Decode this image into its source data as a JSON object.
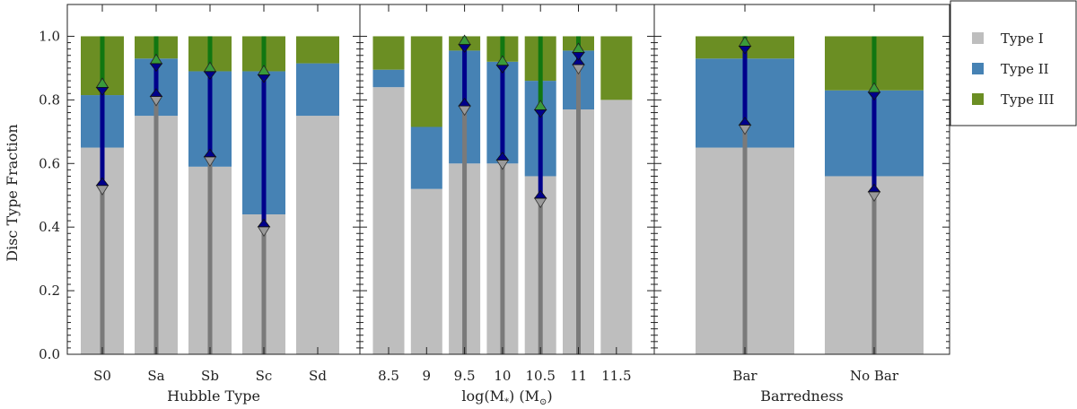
{
  "figure": {
    "ylabel": "Disc Type Fraction",
    "y_ticks": [
      "0.0",
      "0.2",
      "0.4",
      "0.6",
      "0.8",
      "1.0"
    ],
    "legend": [
      {
        "label": "Type I",
        "color": "#bebebe"
      },
      {
        "label": "Type II",
        "color": "#4682b4"
      },
      {
        "label": "Type III",
        "color": "#6b8e23"
      }
    ],
    "colors": {
      "type1": "#bebebe",
      "type2": "#4682b4",
      "type3": "#6b8e23",
      "line_type1": "#7a7a7a",
      "line_type2": "#00008b",
      "line_type3": "#117711"
    }
  },
  "chart_data": [
    {
      "type": "bar",
      "xlabel": "Hubble Type",
      "ylim": [
        0,
        1.1
      ],
      "categories": [
        "S0",
        "Sa",
        "Sb",
        "Sc",
        "Sd"
      ],
      "series": [
        {
          "name": "Type I",
          "values": [
            0.65,
            0.75,
            0.59,
            0.44,
            0.75
          ]
        },
        {
          "name": "Type II",
          "values": [
            0.165,
            0.18,
            0.3,
            0.45,
            0.165
          ]
        },
        {
          "name": "Type III",
          "values": [
            0.185,
            0.07,
            0.11,
            0.11,
            0.085
          ]
        }
      ],
      "markers": [
        {
          "category": "S0",
          "down": 0.52,
          "up": 0.85
        },
        {
          "category": "Sa",
          "down": 0.8,
          "up": 0.925
        },
        {
          "category": "Sb",
          "down": 0.61,
          "up": 0.9
        },
        {
          "category": "Sc",
          "down": 0.39,
          "up": 0.89
        }
      ]
    },
    {
      "type": "bar",
      "xlabel": "log(M*) (M⊙)",
      "ylim": [
        0,
        1.1
      ],
      "categories": [
        "8.5",
        "9",
        "9.5",
        "10",
        "10.5",
        "11",
        "11.5"
      ],
      "series": [
        {
          "name": "Type I",
          "values": [
            0.84,
            0.52,
            0.6,
            0.6,
            0.56,
            0.77,
            0.8
          ]
        },
        {
          "name": "Type II",
          "values": [
            0.055,
            0.195,
            0.355,
            0.32,
            0.3,
            0.185,
            0.0
          ]
        },
        {
          "name": "Type III",
          "values": [
            0.105,
            0.285,
            0.045,
            0.08,
            0.14,
            0.045,
            0.2
          ]
        }
      ],
      "markers": [
        {
          "category": "9.5",
          "down": 0.77,
          "up": 0.985
        },
        {
          "category": "10",
          "down": 0.6,
          "up": 0.92
        },
        {
          "category": "10.5",
          "down": 0.48,
          "up": 0.78
        },
        {
          "category": "11",
          "down": 0.9,
          "up": 0.96
        }
      ]
    },
    {
      "type": "bar",
      "xlabel": "Barredness",
      "ylim": [
        0,
        1.1
      ],
      "categories": [
        "Bar",
        "No Bar"
      ],
      "series": [
        {
          "name": "Type I",
          "values": [
            0.65,
            0.56
          ]
        },
        {
          "name": "Type II",
          "values": [
            0.28,
            0.27
          ]
        },
        {
          "name": "Type III",
          "values": [
            0.07,
            0.17
          ]
        }
      ],
      "markers": [
        {
          "category": "Bar",
          "down": 0.71,
          "up": 0.98
        },
        {
          "category": "No Bar",
          "down": 0.5,
          "up": 0.835
        }
      ]
    }
  ]
}
